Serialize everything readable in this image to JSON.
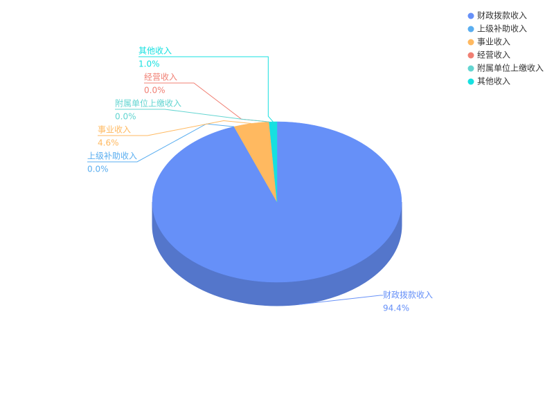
{
  "chart_data": {
    "type": "pie3d",
    "categories": [
      "财政拨款收入",
      "上级补助收入",
      "事业收入",
      "经营收入",
      "附属单位上缴收入",
      "其他收入"
    ],
    "values": [
      94.4,
      0.0,
      4.6,
      0.0,
      0.0,
      1.0
    ],
    "value_labels": [
      "94.4%",
      "0.0%",
      "4.6%",
      "0.0%",
      "0.0%",
      "1.0%"
    ],
    "colors": [
      "#6690f8",
      "#5aaef0",
      "#ffb960",
      "#f07f73",
      "#63d5d1",
      "#16e0e0"
    ],
    "legend": "top-right"
  }
}
